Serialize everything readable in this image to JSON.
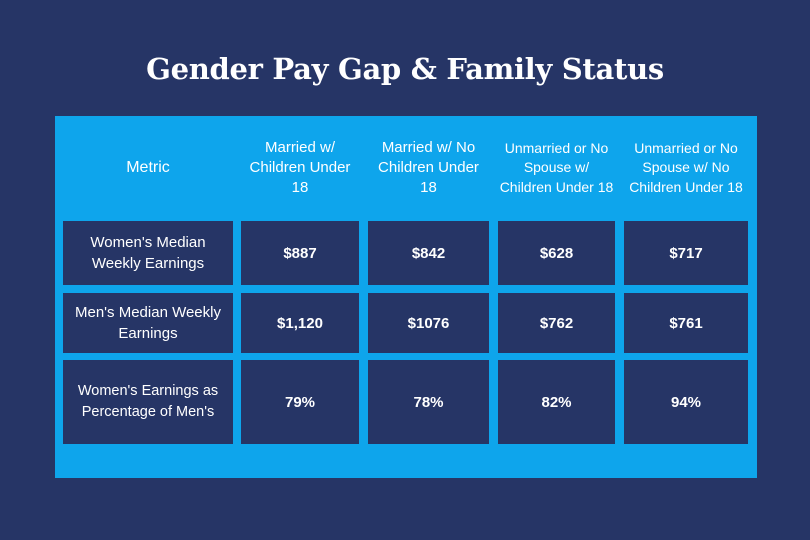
{
  "chart_data": {
    "type": "table",
    "title": "Gender Pay Gap & Family Status",
    "columns": [
      "Metric",
      "Married w/ Children Under 18",
      "Married w/ No Children Under 18",
      "Unmarried or No Spouse w/ Children Under 18",
      "Unmarried or No Spouse w/ No Children Under 18"
    ],
    "rows": [
      {
        "metric": "Women's Median Weekly Earnings",
        "values": [
          "$887",
          "$842",
          "$628",
          "$717"
        ]
      },
      {
        "metric": "Men's Median Weekly Earnings",
        "values": [
          "$1,120",
          "$1076",
          "$762",
          "$761"
        ]
      },
      {
        "metric": "Women's Earnings as Percentage of Men's",
        "values": [
          "79%",
          "78%",
          "82%",
          "94%"
        ]
      }
    ]
  },
  "colors": {
    "background": "#263566",
    "table_panel": "#0ea5ec",
    "cell": "#263566",
    "text": "#ffffff"
  }
}
